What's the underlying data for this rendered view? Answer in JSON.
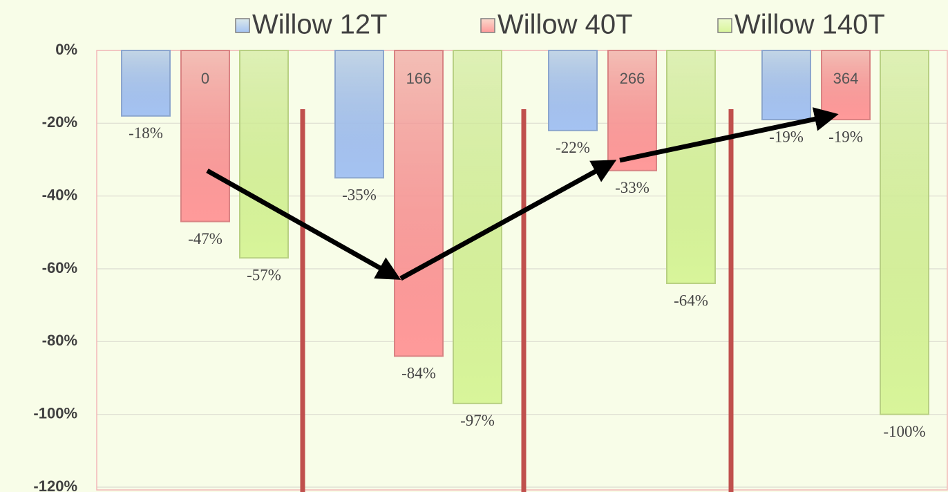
{
  "chart_data": {
    "type": "bar",
    "categories": [
      "0",
      "166",
      "266",
      "364"
    ],
    "series": [
      {
        "name": "Willow 12T",
        "color": "#a5c3f2",
        "values": [
          -18,
          -35,
          -22,
          -19
        ],
        "value_labels": [
          "-18%",
          "-35%",
          "-22%",
          "-19%"
        ]
      },
      {
        "name": "Willow 40T",
        "color": "#ff9a9a",
        "values": [
          -47,
          -84,
          -33,
          -19
        ],
        "value_labels": [
          "-47%",
          "-84%",
          "-33%",
          "-19%"
        ]
      },
      {
        "name": "Willow 140T",
        "color": "#d8f59a",
        "values": [
          -57,
          -97,
          -64,
          -100
        ],
        "value_labels": [
          "-57%",
          "-97%",
          "-64%",
          "-100%"
        ]
      }
    ],
    "ylim": [
      -120,
      0
    ],
    "yticks": [
      {
        "value": 0,
        "label": "0%"
      },
      {
        "value": -20,
        "label": "-20%"
      },
      {
        "value": -40,
        "label": "-40%"
      },
      {
        "value": -60,
        "label": "-60%"
      },
      {
        "value": -80,
        "label": "-80%"
      },
      {
        "value": -100,
        "label": "-100%"
      },
      {
        "value": -120,
        "label": "-120%"
      }
    ],
    "grid": true
  }
}
